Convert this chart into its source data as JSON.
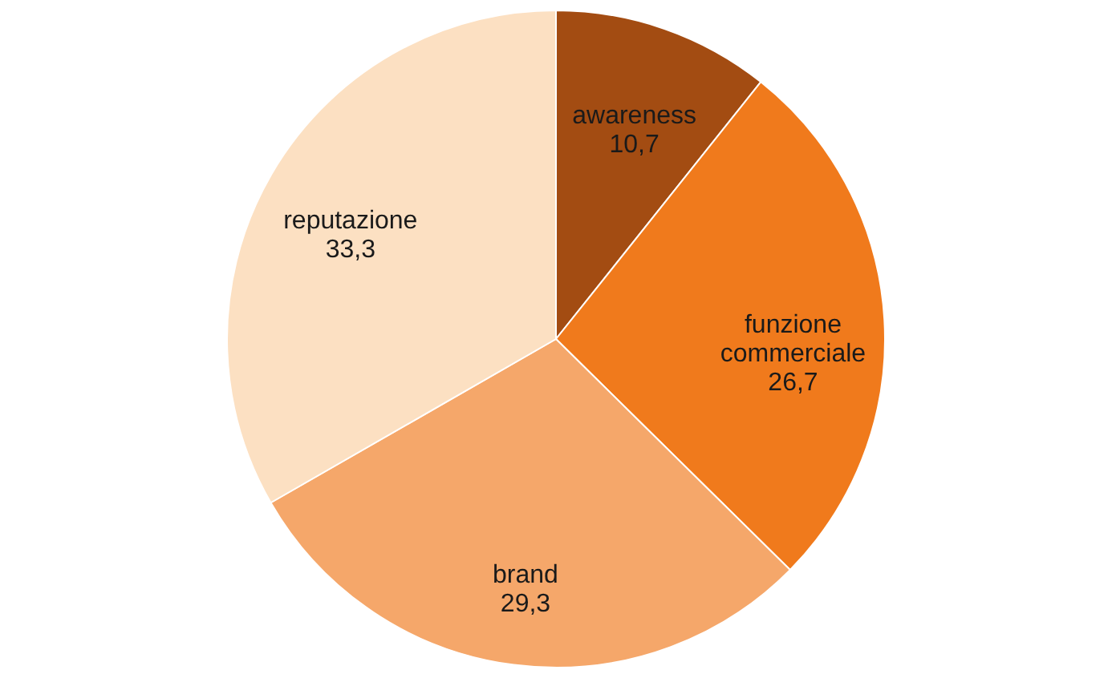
{
  "chart_data": {
    "type": "pie",
    "categories": [
      "awareness",
      "funzione commerciale",
      "brand",
      "reputazione"
    ],
    "values": [
      10.7,
      26.7,
      29.3,
      33.3
    ],
    "colors": [
      "#a34c12",
      "#f07a1c",
      "#f5a76a",
      "#fce0c2"
    ],
    "value_labels": [
      "10,7",
      "26,7",
      "29,3",
      "33,3"
    ]
  }
}
